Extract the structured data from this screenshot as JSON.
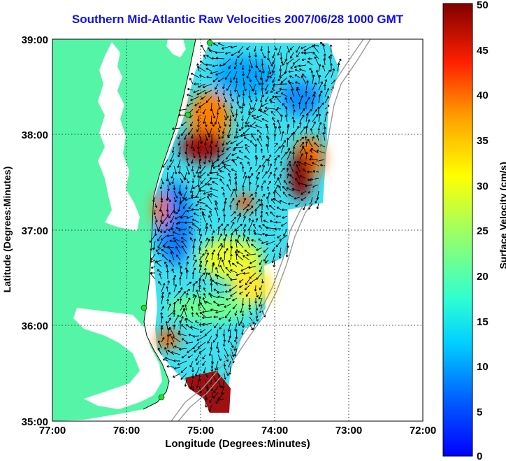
{
  "title": "Southern Mid-Atlantic Raw Velocities 2007/06/28 1000 GMT",
  "xlabel": "Longitude (Degrees:Minutes)",
  "ylabel": "Latitude (Degrees:Minutes)",
  "colorbar": {
    "label": "Surface Velocity (cm/s)",
    "ticks": [
      "50",
      "45",
      "40",
      "35",
      "30",
      "25",
      "20",
      "15",
      "10",
      "5",
      "0"
    ],
    "range": [
      0,
      50
    ],
    "colormap": "jet"
  },
  "x_ticks": [
    "77:00",
    "76:00",
    "75:00",
    "74:00",
    "73:00",
    "72:00"
  ],
  "y_ticks": [
    "39:00",
    "38:00",
    "37:00",
    "36:00",
    "35:00"
  ],
  "colors": {
    "title": "#1010ee",
    "land": "#55f5a8",
    "water": "#ffffff",
    "coast": "#1a1a1a",
    "station": "#22dd22",
    "isobath": "#9a9a9a"
  },
  "chart_data": {
    "type": "heatmap",
    "xlim": [
      -77,
      -72
    ],
    "ylim": [
      35,
      39
    ],
    "grid": true,
    "description_of_values": "surface current speed cm/s with velocity vectors"
  }
}
